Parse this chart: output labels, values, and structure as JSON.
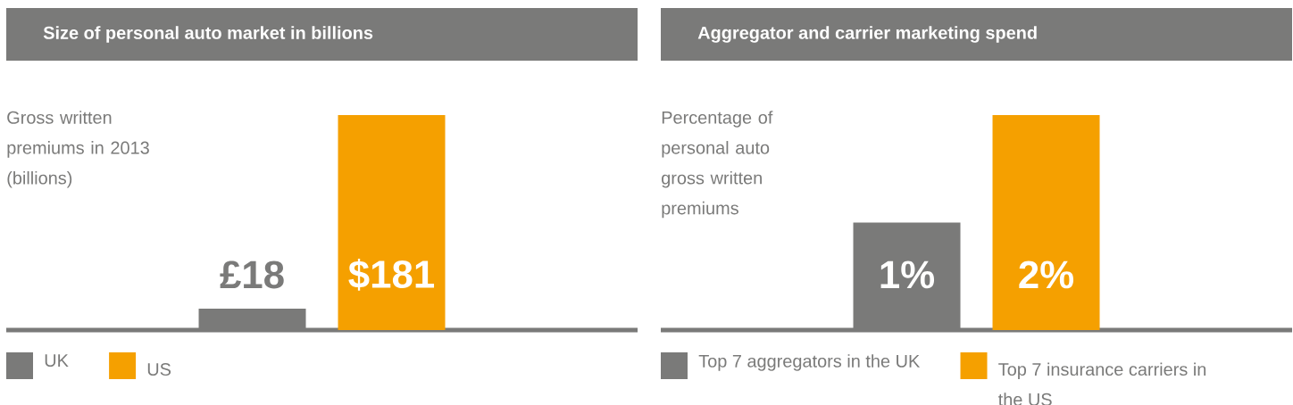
{
  "chart_data": [
    {
      "type": "bar",
      "title": "Size of personal auto market in billions",
      "ylabel": "Gross written premiums in 2013 (billions)",
      "categories": [
        null
      ],
      "legend": "bottom left",
      "series": [
        {
          "name": "UK",
          "color": "#7a7a79",
          "values": [
            18
          ],
          "value_labels": [
            "£18"
          ]
        },
        {
          "name": "US",
          "color": "#f5a000",
          "values": [
            181
          ],
          "value_labels": [
            "$181"
          ]
        }
      ]
    },
    {
      "type": "bar",
      "title": "Aggregator and carrier marketing spend",
      "ylabel": "Percentage of personal auto gross written premiums",
      "categories": [
        null
      ],
      "legend": "bottom left",
      "series": [
        {
          "name": "Top 7 aggregators in the UK",
          "color": "#7a7a79",
          "values": [
            1
          ],
          "value_labels": [
            "1%"
          ]
        },
        {
          "name": "Top 7 insurance carriers in the US",
          "color": "#f5a000",
          "values": [
            2
          ],
          "value_labels": [
            "2%"
          ]
        }
      ]
    }
  ]
}
